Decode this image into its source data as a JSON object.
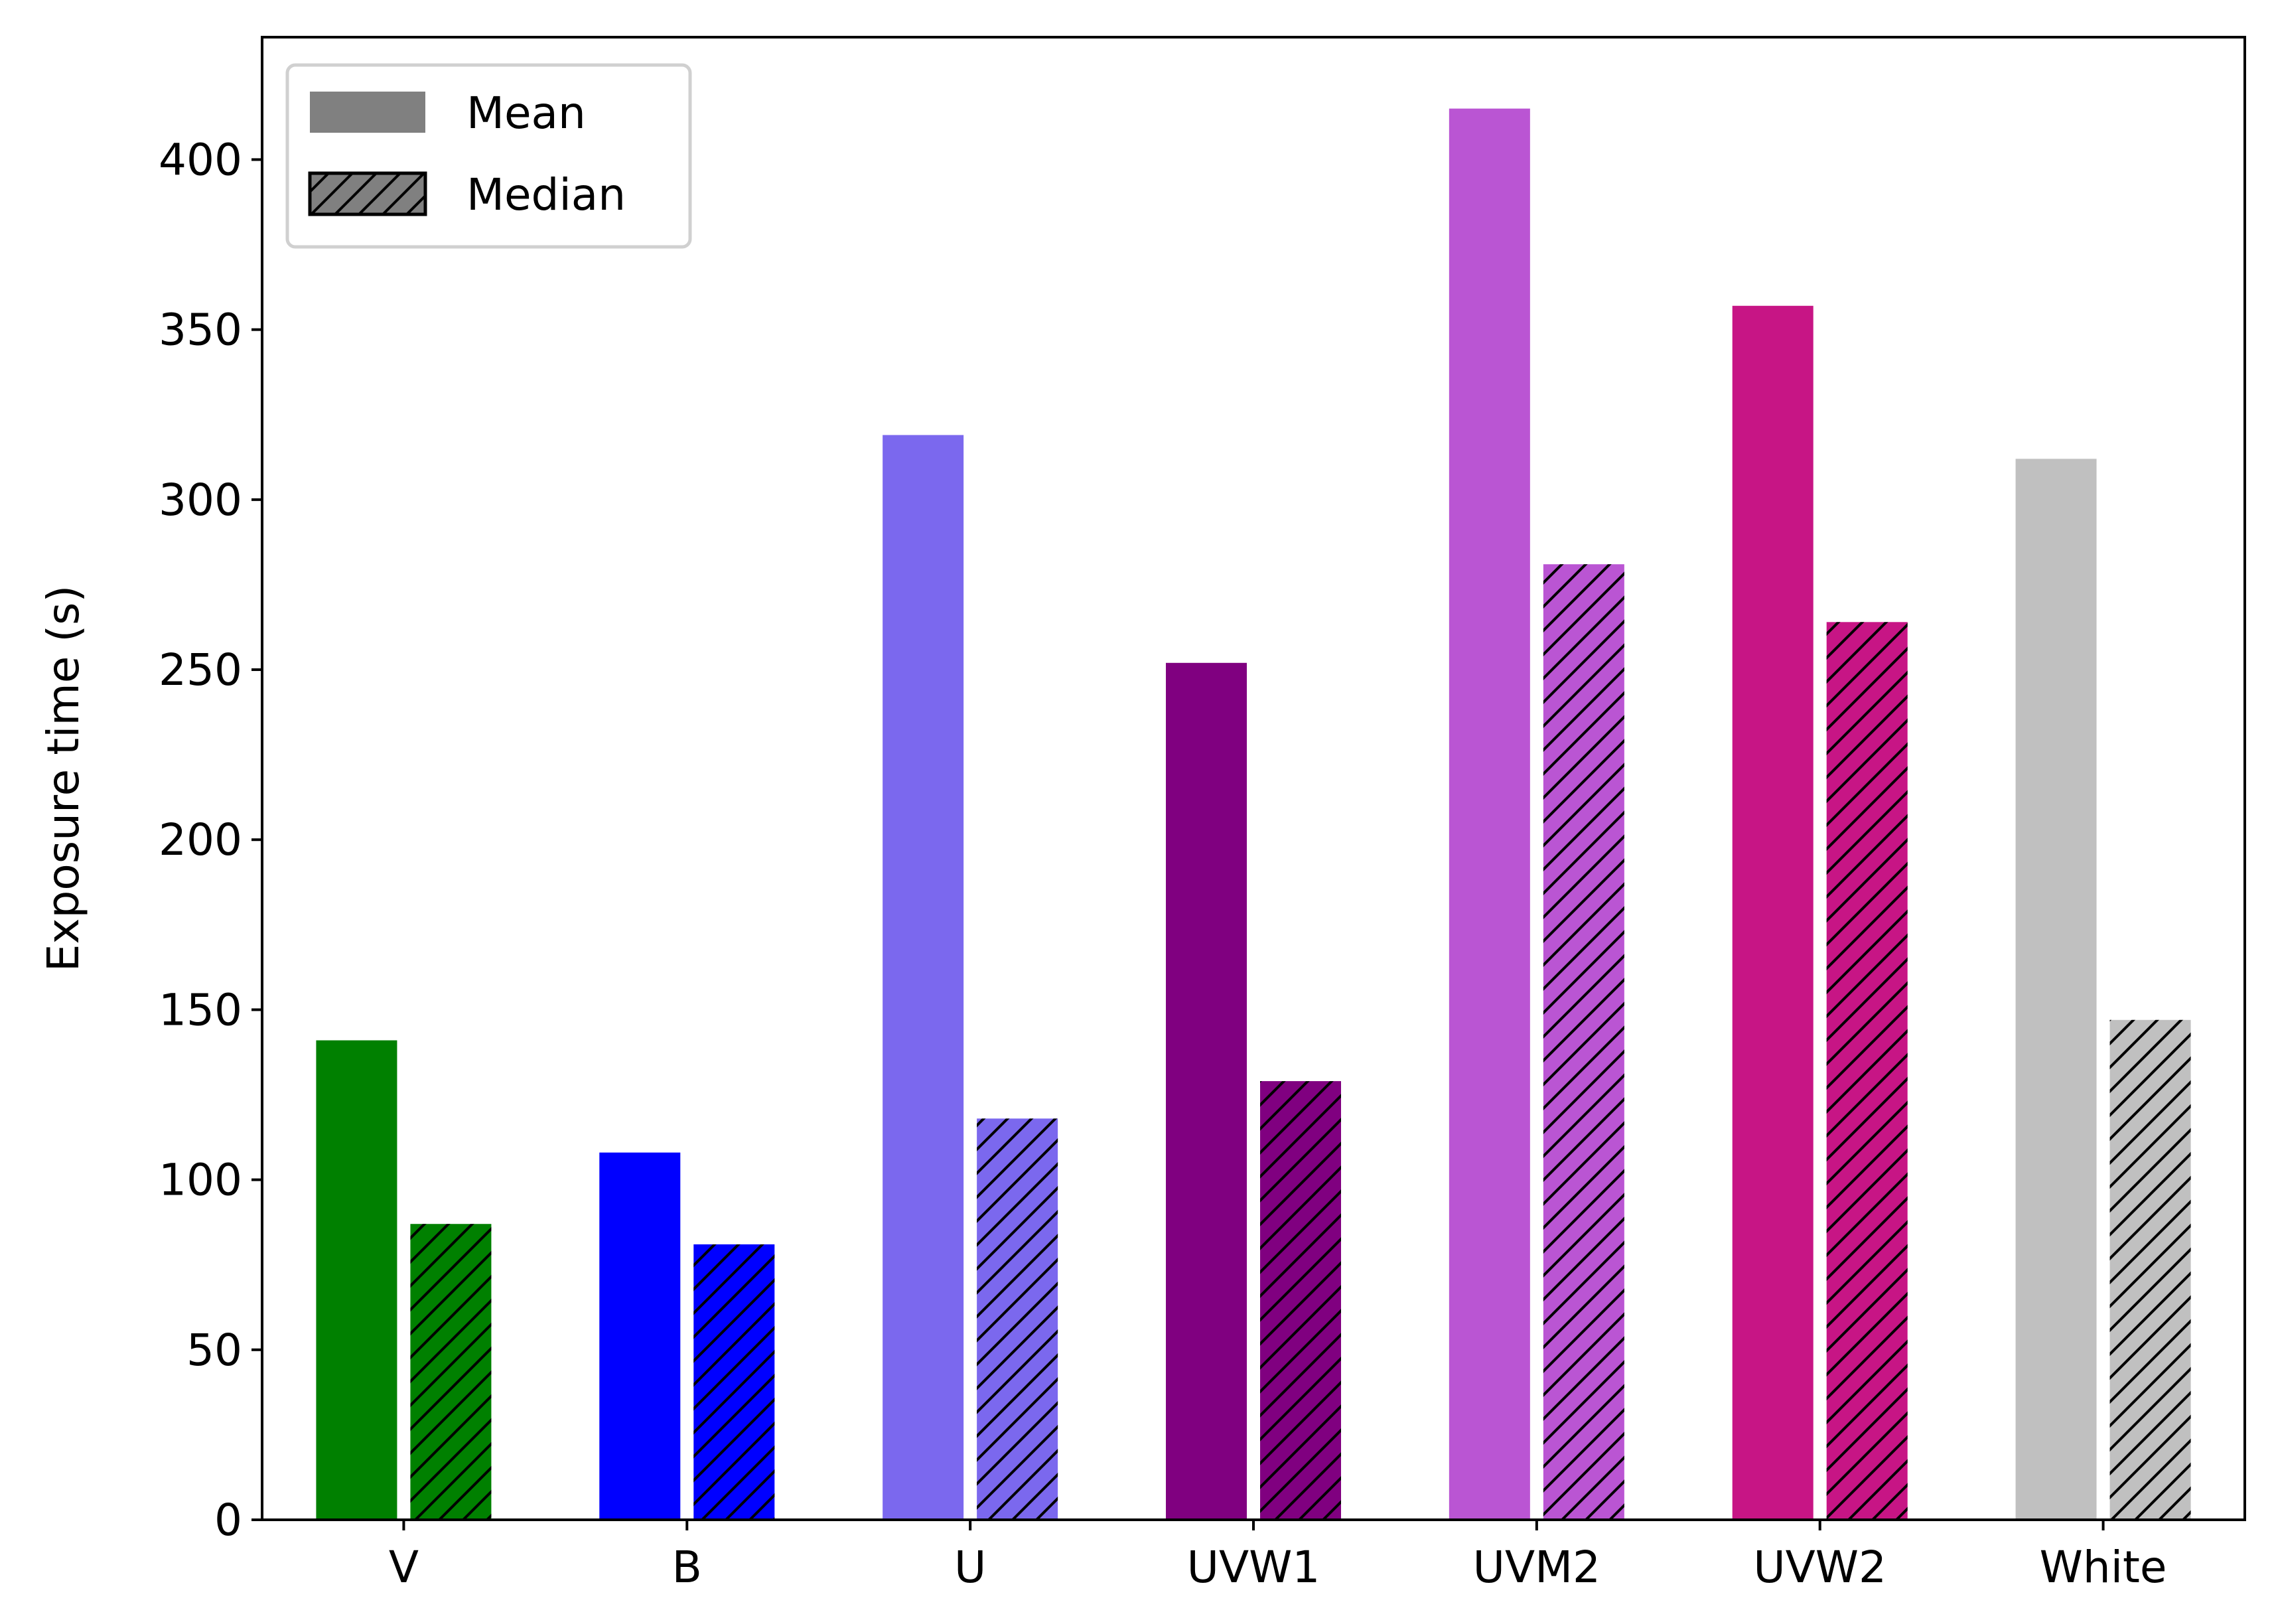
{
  "chart_data": {
    "type": "bar",
    "title": "",
    "xlabel": "",
    "ylabel": "Exposure time (s)",
    "ylim": [
      0,
      436
    ],
    "yticks": [
      0,
      50,
      100,
      150,
      200,
      250,
      300,
      350,
      400
    ],
    "categories": [
      "V",
      "B",
      "U",
      "UVW1",
      "UVM2",
      "UVW2",
      "White"
    ],
    "category_colors": [
      "#008000",
      "#0000ff",
      "#7b68ee",
      "#800080",
      "#ba55d3",
      "#c71585",
      "#c0c0c0"
    ],
    "series": [
      {
        "name": "Mean",
        "hatch": false,
        "values": [
          141,
          108,
          319,
          252,
          415,
          357,
          312
        ]
      },
      {
        "name": "Median",
        "hatch": true,
        "values": [
          87,
          81,
          118,
          129,
          281,
          264,
          147
        ]
      }
    ],
    "legend": {
      "placement": "top-left",
      "entries": [
        {
          "label": "Mean",
          "color": "#808080",
          "hatch": false
        },
        {
          "label": "Median",
          "color": "#808080",
          "hatch": true
        }
      ]
    },
    "grid": false
  }
}
